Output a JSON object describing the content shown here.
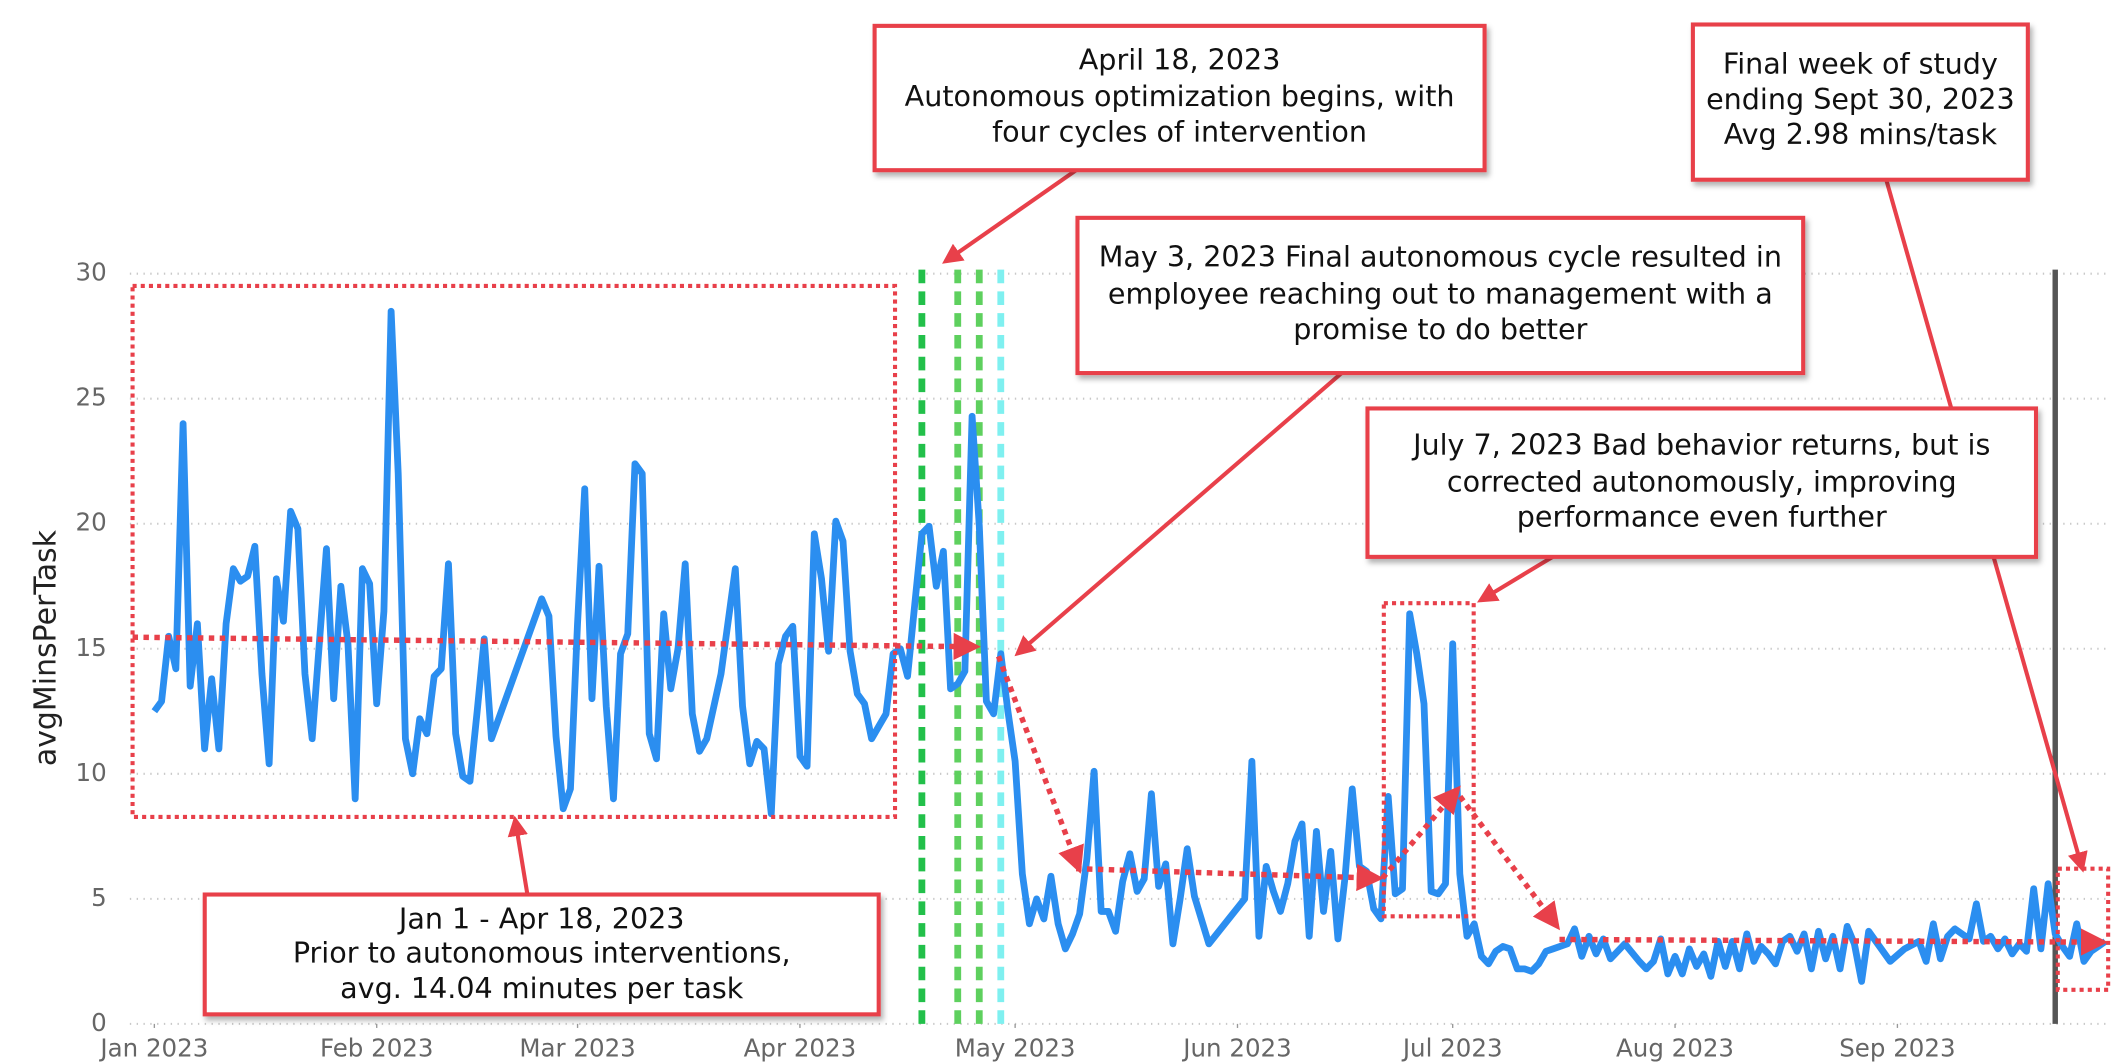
{
  "chart_data": {
    "type": "line",
    "y_label": "avgMinsPerTask",
    "color": "#2b8ef0",
    "xlim": [
      "2023-01-01",
      "2023-09-30"
    ],
    "ylim": [
      0,
      30
    ],
    "yticks": [
      0,
      5,
      10,
      15,
      20,
      25,
      30
    ],
    "grid": true,
    "xticks": [
      {
        "value": "2023-01-01",
        "label": "Jan 2023"
      },
      {
        "value": "2023-02-01",
        "label": "Feb 2023"
      },
      {
        "value": "2023-03-01",
        "label": "Mar 2023"
      },
      {
        "value": "2023-04-01",
        "label": "Apr 2023"
      },
      {
        "value": "2023-05-01",
        "label": "May 2023"
      },
      {
        "value": "2023-06-01",
        "label": "Jun 2023"
      },
      {
        "value": "2023-07-01",
        "label": "Jul 2023"
      },
      {
        "value": "2023-08-01",
        "label": "Aug 2023"
      },
      {
        "value": "2023-09-01",
        "label": "Sep 2023"
      }
    ],
    "vertical_lines": [
      {
        "x": "2023-04-18",
        "color": "#22c04a",
        "dashed": true
      },
      {
        "x": "2023-04-23",
        "color": "#5ed05e",
        "dashed": true
      },
      {
        "x": "2023-04-26",
        "color": "#5ed05e",
        "dashed": true
      },
      {
        "x": "2023-04-29",
        "color": "#7ff0f0",
        "dashed": true
      },
      {
        "x": "2023-09-23",
        "color": "#555555",
        "dashed": false
      }
    ],
    "annotations": [
      {
        "lines": [
          "April 18, 2023",
          "Autonomous optimization begins, with",
          "four cycles of intervention"
        ]
      },
      {
        "lines": [
          "Final week of study",
          "ending Sept 30, 2023",
          "Avg 2.98 mins/task"
        ]
      },
      {
        "lines": [
          "May 3, 2023 Final autonomous cycle resulted in",
          "employee reaching out to management with a",
          "promise to do better"
        ]
      },
      {
        "lines": [
          "July 7, 2023 Bad behavior returns, but is",
          "corrected autonomously, improving",
          "performance even further"
        ]
      },
      {
        "lines": [
          "Jan 1 - Apr 18, 2023",
          "Prior to autonomous interventions,",
          "avg. 14.04 minutes per task"
        ]
      }
    ],
    "x": [
      "2023-01-01",
      "2023-01-02",
      "2023-01-03",
      "2023-01-04",
      "2023-01-05",
      "2023-01-06",
      "2023-01-07",
      "2023-01-08",
      "2023-01-09",
      "2023-01-10",
      "2023-01-11",
      "2023-01-12",
      "2023-01-13",
      "2023-01-14",
      "2023-01-15",
      "2023-01-16",
      "2023-01-17",
      "2023-01-18",
      "2023-01-19",
      "2023-01-20",
      "2023-01-21",
      "2023-01-22",
      "2023-01-23",
      "2023-01-25",
      "2023-01-26",
      "2023-01-27",
      "2023-01-28",
      "2023-01-29",
      "2023-01-30",
      "2023-01-31",
      "2023-02-01",
      "2023-02-02",
      "2023-02-03",
      "2023-02-04",
      "2023-02-05",
      "2023-02-06",
      "2023-02-07",
      "2023-02-08",
      "2023-02-09",
      "2023-02-10",
      "2023-02-11",
      "2023-02-12",
      "2023-02-13",
      "2023-02-14",
      "2023-02-15",
      "2023-02-16",
      "2023-02-17",
      "2023-02-24",
      "2023-02-25",
      "2023-02-26",
      "2023-02-27",
      "2023-02-28",
      "2023-03-01",
      "2023-03-02",
      "2023-03-03",
      "2023-03-04",
      "2023-03-05",
      "2023-03-06",
      "2023-03-07",
      "2023-03-08",
      "2023-03-09",
      "2023-03-10",
      "2023-03-11",
      "2023-03-12",
      "2023-03-13",
      "2023-03-14",
      "2023-03-15",
      "2023-03-16",
      "2023-03-17",
      "2023-03-18",
      "2023-03-19",
      "2023-03-21",
      "2023-03-23",
      "2023-03-24",
      "2023-03-25",
      "2023-03-26",
      "2023-03-27",
      "2023-03-28",
      "2023-03-29",
      "2023-03-30",
      "2023-03-31",
      "2023-04-01",
      "2023-04-02",
      "2023-04-03",
      "2023-04-04",
      "2023-04-05",
      "2023-04-06",
      "2023-04-07",
      "2023-04-08",
      "2023-04-09",
      "2023-04-10",
      "2023-04-11",
      "2023-04-12",
      "2023-04-13",
      "2023-04-14",
      "2023-04-15",
      "2023-04-16",
      "2023-04-18",
      "2023-04-19",
      "2023-04-20",
      "2023-04-21",
      "2023-04-22",
      "2023-04-23",
      "2023-04-24",
      "2023-04-25",
      "2023-04-26",
      "2023-04-27",
      "2023-04-28",
      "2023-04-29",
      "2023-04-30",
      "2023-05-01",
      "2023-05-02",
      "2023-05-03",
      "2023-05-04",
      "2023-05-05",
      "2023-05-06",
      "2023-05-07",
      "2023-05-08",
      "2023-05-09",
      "2023-05-10",
      "2023-05-11",
      "2023-05-12",
      "2023-05-13",
      "2023-05-14",
      "2023-05-15",
      "2023-05-16",
      "2023-05-17",
      "2023-05-18",
      "2023-05-19",
      "2023-05-20",
      "2023-05-21",
      "2023-05-22",
      "2023-05-23",
      "2023-05-24",
      "2023-05-25",
      "2023-05-26",
      "2023-05-28",
      "2023-06-02",
      "2023-06-03",
      "2023-06-04",
      "2023-06-05",
      "2023-06-06",
      "2023-06-07",
      "2023-06-08",
      "2023-06-09",
      "2023-06-10",
      "2023-06-11",
      "2023-06-12",
      "2023-06-13",
      "2023-06-14",
      "2023-06-15",
      "2023-06-16",
      "2023-06-17",
      "2023-06-18",
      "2023-06-19",
      "2023-06-20",
      "2023-06-21",
      "2023-06-22",
      "2023-06-23",
      "2023-06-24",
      "2023-06-25",
      "2023-06-26",
      "2023-06-27",
      "2023-06-28",
      "2023-06-29",
      "2023-06-30",
      "2023-07-01",
      "2023-07-02",
      "2023-07-03",
      "2023-07-04",
      "2023-07-05",
      "2023-07-06",
      "2023-07-07",
      "2023-07-08",
      "2023-07-09",
      "2023-07-10",
      "2023-07-11",
      "2023-07-12",
      "2023-07-13",
      "2023-07-14",
      "2023-07-15",
      "2023-07-17",
      "2023-07-18",
      "2023-07-19",
      "2023-07-20",
      "2023-07-21",
      "2023-07-22",
      "2023-07-23",
      "2023-07-25",
      "2023-07-27",
      "2023-07-28",
      "2023-07-29",
      "2023-07-30",
      "2023-07-31",
      "2023-08-01",
      "2023-08-02",
      "2023-08-03",
      "2023-08-04",
      "2023-08-05",
      "2023-08-06",
      "2023-08-07",
      "2023-08-08",
      "2023-08-09",
      "2023-08-10",
      "2023-08-11",
      "2023-08-12",
      "2023-08-13",
      "2023-08-14",
      "2023-08-15",
      "2023-08-16",
      "2023-08-17",
      "2023-08-18",
      "2023-08-19",
      "2023-08-20",
      "2023-08-21",
      "2023-08-22",
      "2023-08-23",
      "2023-08-24",
      "2023-08-25",
      "2023-08-26",
      "2023-08-27",
      "2023-08-28",
      "2023-08-29",
      "2023-08-31",
      "2023-09-02",
      "2023-09-04",
      "2023-09-05",
      "2023-09-06",
      "2023-09-07",
      "2023-09-08",
      "2023-09-09",
      "2023-09-10",
      "2023-09-11",
      "2023-09-12",
      "2023-09-13",
      "2023-09-14",
      "2023-09-15",
      "2023-09-16",
      "2023-09-17",
      "2023-09-18",
      "2023-09-19",
      "2023-09-20",
      "2023-09-21",
      "2023-09-22",
      "2023-09-23",
      "2023-09-24",
      "2023-09-25",
      "2023-09-26",
      "2023-09-27",
      "2023-09-28",
      "2023-09-29",
      "2023-09-30"
    ],
    "values": [
      12.5,
      12.9,
      15.5,
      14.2,
      24,
      13.5,
      16,
      11,
      13.8,
      11,
      16,
      18.2,
      17.7,
      17.9,
      19.1,
      14,
      10.4,
      17.8,
      16.1,
      20.5,
      19.8,
      14,
      11.4,
      19,
      13,
      17.5,
      15.2,
      9,
      18.2,
      17.6,
      12.8,
      16.5,
      28.5,
      22,
      11.4,
      10,
      12.2,
      11.6,
      13.9,
      14.2,
      18.4,
      11.6,
      9.9,
      9.7,
      12.5,
      15.4,
      11.4,
      17,
      16.3,
      11.5,
      8.6,
      9.4,
      16,
      21.4,
      13,
      18.3,
      12.7,
      9,
      14.8,
      15.6,
      22.4,
      22,
      11.6,
      10.6,
      16.4,
      13.4,
      15,
      18.4,
      12.4,
      10.9,
      11.4,
      14,
      18.2,
      12.7,
      10.4,
      11.3,
      11,
      8.4,
      14.4,
      15.5,
      15.9,
      10.7,
      10.3,
      19.6,
      17.8,
      14.9,
      20.1,
      19.3,
      14.9,
      13.2,
      12.8,
      11.4,
      11.9,
      12.4,
      14.8,
      15,
      13.9,
      19.6,
      19.9,
      17.5,
      18.9,
      13.4,
      13.6,
      14.1,
      24.3,
      19.9,
      12.9,
      12.4,
      14.8,
      12.5,
      10.5,
      6,
      4,
      5,
      4.2,
      5.9,
      4,
      3,
      3.6,
      4.4,
      6.6,
      10.1,
      4.5,
      4.5,
      3.7,
      5.7,
      6.8,
      5.3,
      5.8,
      9.2,
      5.5,
      6.4,
      3.2,
      5,
      7,
      5.1,
      3.2,
      5,
      10.5,
      3.5,
      6.3,
      5.3,
      4.5,
      5.6,
      7.3,
      8,
      3.5,
      7.7,
      4.5,
      6.9,
      3.4,
      5.9,
      9.4,
      6.3,
      6.1,
      4.6,
      4.2,
      9.1,
      5.2,
      5.4,
      16.4,
      14.8,
      12.8,
      5.3,
      5.2,
      5.6,
      15.2,
      6,
      3.5,
      4,
      2.7,
      2.4,
      2.9,
      3.1,
      3,
      2.2,
      2.2,
      2.1,
      2.4,
      2.9,
      3,
      3.2,
      3.8,
      2.7,
      3.5,
      2.8,
      3.4,
      2.6,
      3.2,
      2.5,
      2.2,
      2.5,
      3.4,
      2,
      2.7,
      2,
      3,
      2.3,
      2.8,
      1.9,
      3.3,
      2.3,
      3.3,
      2.2,
      3.6,
      2.5,
      3.1,
      2.8,
      2.4,
      3.3,
      3.5,
      2.9,
      3.6,
      2.2,
      3.7,
      2.6,
      3.5,
      2.2,
      3.9,
      3.2,
      1.7,
      3.7,
      3.3,
      2.5,
      3,
      3.3,
      2.5,
      4,
      2.6,
      3.5,
      3.8,
      3.6,
      3.4,
      4.8,
      3.3,
      3.5,
      3,
      3.4,
      2.8,
      3.2,
      2.9,
      5.4,
      3,
      5.6,
      3.6,
      3.1,
      2.7,
      4,
      2.5,
      2.9,
      3.1,
      3.3
    ]
  }
}
